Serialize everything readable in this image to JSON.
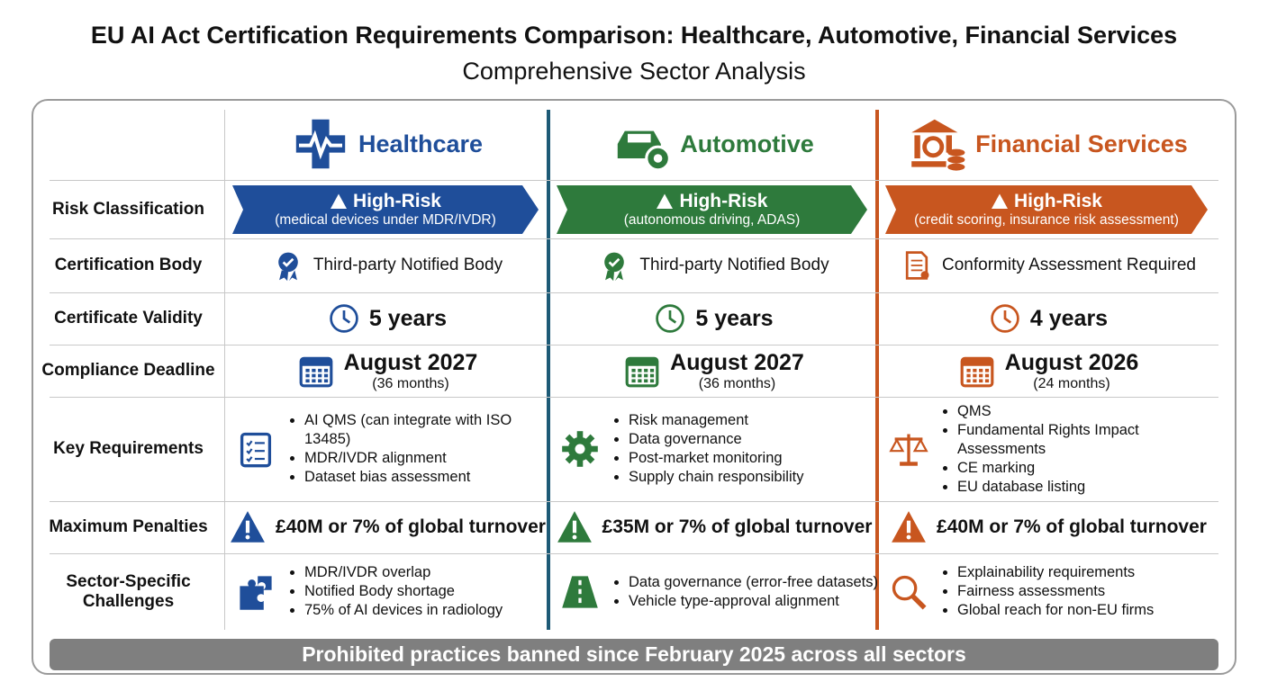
{
  "header": {
    "title": "EU AI Act Certification Requirements Comparison: Healthcare, Automotive, Financial Services",
    "subtitle": "Comprehensive Sector Analysis"
  },
  "table": {
    "row_labels": [
      "Risk Classification",
      "Certification Body",
      "Certificate Validity",
      "Compliance Deadline",
      "Key Requirements",
      "Maximum Penalties",
      "Sector-Specific Challenges"
    ],
    "columns": [
      {
        "name": "Healthcare",
        "color": "#1f4e9a",
        "risk": {
          "level": "High-Risk",
          "detail": "(medical devices under MDR/IVDR)"
        },
        "certification_body": "Third-party Notified Body",
        "validity": "5 years",
        "deadline": {
          "date": "August 2027",
          "detail": "(36 months)"
        },
        "key_requirements": [
          "AI QMS (can integrate with ISO 13485)",
          "MDR/IVDR alignment",
          "Dataset bias assessment"
        ],
        "penalty": "£40M or 7% of global turnover",
        "challenges": [
          "MDR/IVDR overlap",
          "Notified Body shortage",
          "75% of AI devices in radiology"
        ]
      },
      {
        "name": "Automotive",
        "color": "#2e7a3c",
        "risk": {
          "level": "High-Risk",
          "detail": "(autonomous driving, ADAS)"
        },
        "certification_body": "Third-party Notified Body",
        "validity": "5 years",
        "deadline": {
          "date": "August 2027",
          "detail": "(36 months)"
        },
        "key_requirements": [
          "Risk management",
          "Data governance",
          "Post-market monitoring",
          "Supply chain responsibility"
        ],
        "penalty": "£35M or 7% of global turnover",
        "challenges": [
          "Data governance (error-free datasets)",
          "Vehicle type-approval alignment"
        ]
      },
      {
        "name": "Financial Services",
        "color": "#c8561f",
        "risk": {
          "level": "High-Risk",
          "detail": "(credit scoring, insurance risk assessment)"
        },
        "certification_body": "Conformity Assessment Required",
        "validity": "4 years",
        "deadline": {
          "date": "August 2026",
          "detail": "(24 months)"
        },
        "key_requirements": [
          "QMS",
          "Fundamental Rights Impact Assessments",
          "CE marking",
          "EU database listing"
        ],
        "penalty": "£40M or 7% of global turnover",
        "challenges": [
          "Explainability requirements",
          "Fairness assessments",
          "Global reach for non-EU firms"
        ]
      }
    ]
  },
  "footer": "Prohibited practices banned since February 2025 across all sectors"
}
